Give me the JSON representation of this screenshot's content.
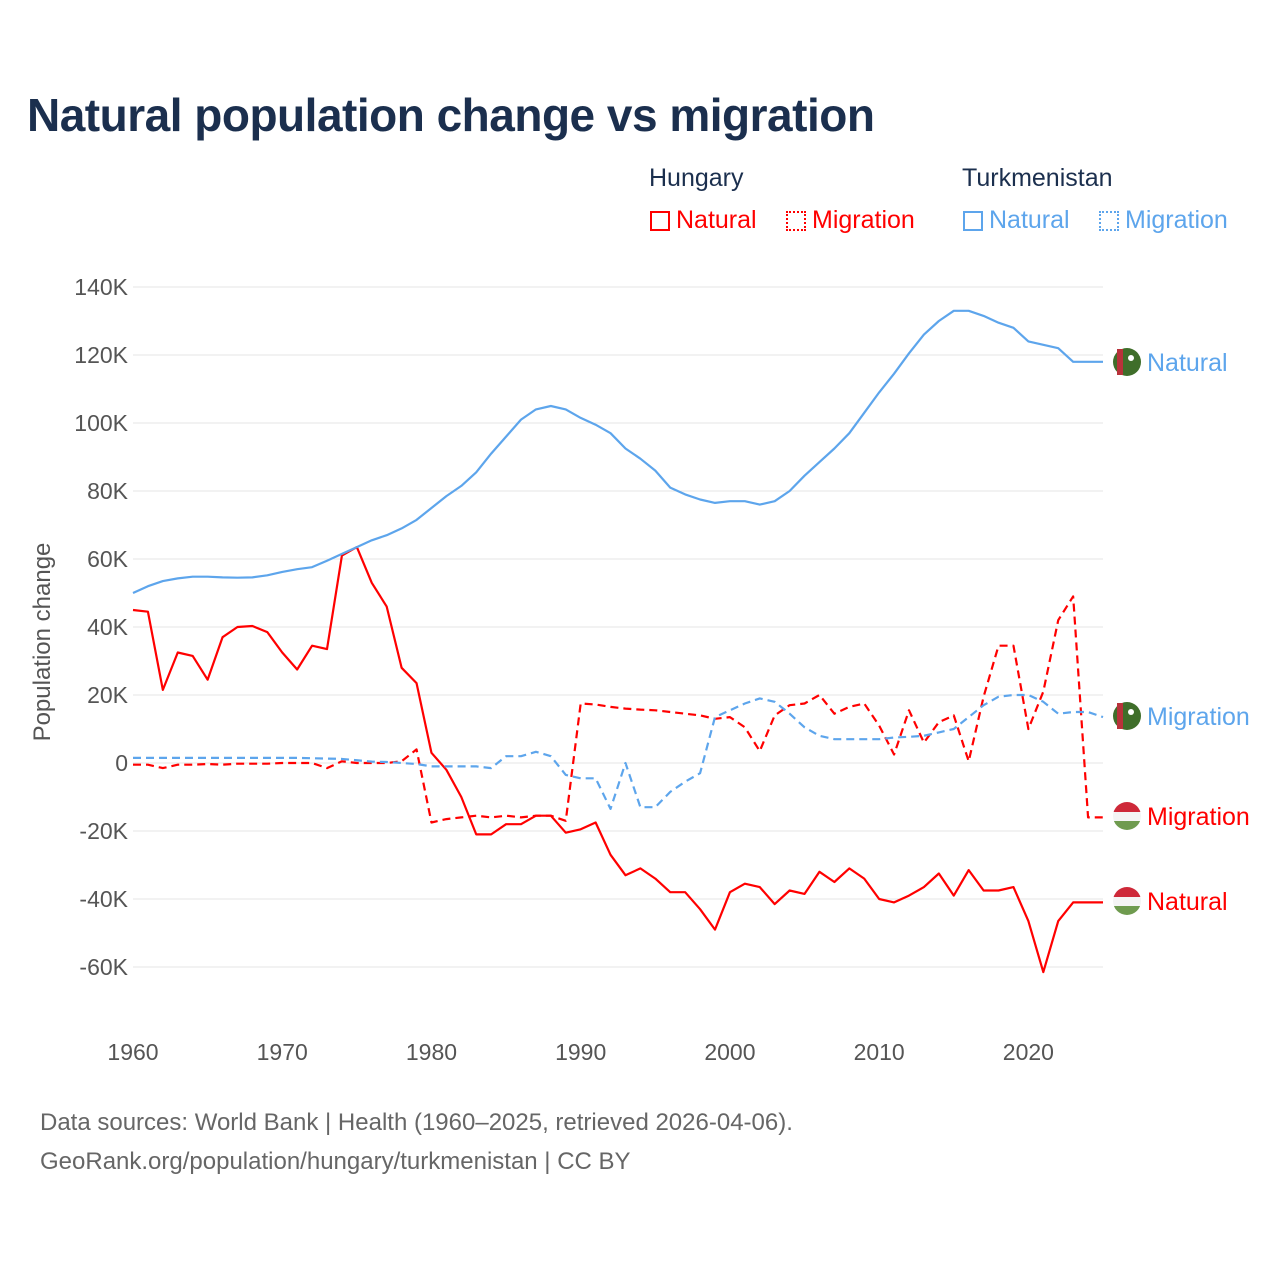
{
  "title": "Natural population change vs migration",
  "legend": {
    "groups": [
      {
        "name": "Hungary",
        "color": "#ff0000",
        "items": [
          "Natural",
          "Migration"
        ]
      },
      {
        "name": "Turkmenistan",
        "color": "#5da5ec",
        "items": [
          "Natural",
          "Migration"
        ]
      }
    ]
  },
  "source_line1": "Data sources: World Bank | Health (1960–2025, retrieved 2026-04-06).",
  "source_line2": "GeoRank.org/population/hungary/turkmenistan | CC BY",
  "chart_data": {
    "type": "line",
    "title": "Natural population change vs migration",
    "xlabel": "",
    "ylabel": "Population change",
    "xlim": [
      1960,
      2025
    ],
    "ylim": [
      -70000,
      140000
    ],
    "x_ticks": [
      1960,
      1970,
      1980,
      1990,
      2000,
      2010,
      2020
    ],
    "y_ticks": [
      -60000,
      -40000,
      -20000,
      0,
      20000,
      40000,
      60000,
      80000,
      100000,
      120000,
      140000
    ],
    "y_tick_labels": [
      "-60K",
      "-40K",
      "-20K",
      "0",
      "20K",
      "40K",
      "60K",
      "80K",
      "100K",
      "120K",
      "140K"
    ],
    "grid": true,
    "x_start": 1960,
    "series": [
      {
        "name": "Hungary Natural",
        "end_label": "Natural",
        "country": "Hungary",
        "color": "#ff0000",
        "dash": false,
        "values_k": [
          45,
          44.5,
          21.5,
          32.5,
          31.5,
          24.5,
          37,
          40,
          40.3,
          38.5,
          32.5,
          27.5,
          34.5,
          33.5,
          61,
          63.5,
          53,
          46,
          28,
          23.5,
          3,
          -2,
          -10,
          -21,
          -21,
          -18,
          -18,
          -15.5,
          -15.5,
          -20.5,
          -19.5,
          -17.5,
          -27,
          -33,
          -31,
          -34,
          -38,
          -38,
          -43,
          -49,
          -38,
          -35.5,
          -36.5,
          -41.5,
          -37.5,
          -38.5,
          -32,
          -35,
          -31,
          -34,
          -40,
          -41,
          -39,
          -36.5,
          -32.5,
          -39,
          -31.5,
          -37.5,
          -37.5,
          -36.5,
          -46.5,
          -61.5,
          -46.5,
          -41,
          -41,
          -41
        ]
      },
      {
        "name": "Hungary Migration",
        "end_label": "Migration",
        "country": "Hungary",
        "color": "#ff0000",
        "dash": true,
        "values_k": [
          -0.5,
          -0.5,
          -1.5,
          -0.5,
          -0.5,
          -0.3,
          -0.5,
          -0.2,
          -0.2,
          -0.2,
          0,
          0,
          0,
          -1.5,
          0.5,
          0,
          0,
          0,
          0.5,
          4,
          -17.5,
          -16.5,
          -16,
          -15.5,
          -16,
          -15.5,
          -16,
          -15.5,
          -15.5,
          -17,
          17.5,
          17.2,
          16.5,
          16,
          15.7,
          15.5,
          15,
          14.5,
          14,
          13,
          13.5,
          10.5,
          3.5,
          14,
          17,
          17.5,
          20,
          14.5,
          16.5,
          17.5,
          11,
          2.5,
          15.5,
          6,
          12,
          14,
          0.5,
          19.5,
          34.5,
          34.5,
          10,
          21,
          42,
          49,
          -16,
          -16
        ]
      },
      {
        "name": "Turkmenistan Natural",
        "end_label": "Natural",
        "country": "Turkmenistan",
        "color": "#5da5ec",
        "dash": false,
        "values_k": [
          50,
          52,
          53.5,
          54.3,
          54.8,
          54.8,
          54.6,
          54.5,
          54.6,
          55.2,
          56.2,
          57,
          57.6,
          59.5,
          61.5,
          63.5,
          65.5,
          67,
          69,
          71.5,
          75,
          78.5,
          81.5,
          85.5,
          91,
          96,
          101,
          104,
          105,
          104,
          101.5,
          99.5,
          97,
          92.5,
          89.5,
          86,
          81,
          79,
          77.5,
          76.5,
          77,
          77,
          76,
          77,
          80,
          84.5,
          88.5,
          92.5,
          97,
          103,
          109,
          114.5,
          120.5,
          126,
          130,
          133,
          133,
          131.5,
          129.5,
          128,
          124,
          123,
          122,
          118,
          118,
          118
        ]
      },
      {
        "name": "Turkmenistan Migration",
        "end_label": "Migration",
        "country": "Turkmenistan",
        "color": "#5da5ec",
        "dash": true,
        "values_k": [
          1.5,
          1.5,
          1.5,
          1.5,
          1.5,
          1.5,
          1.5,
          1.5,
          1.5,
          1.5,
          1.5,
          1.5,
          1.4,
          1.3,
          1.2,
          0.8,
          0.4,
          0.3,
          0,
          -0.3,
          -1,
          -1,
          -1,
          -1,
          -1.5,
          2,
          2,
          3.3,
          2,
          -3.5,
          -4.5,
          -4.5,
          -13.5,
          0,
          -13,
          -13,
          -8.5,
          -5.5,
          -3,
          13.5,
          15.5,
          17.5,
          19,
          18,
          14.5,
          10.5,
          8,
          7,
          7,
          7,
          7,
          7.5,
          7.7,
          8,
          9,
          10,
          13.5,
          17,
          19.5,
          20,
          20,
          18,
          14.5,
          15,
          15,
          13.5
        ]
      }
    ]
  }
}
